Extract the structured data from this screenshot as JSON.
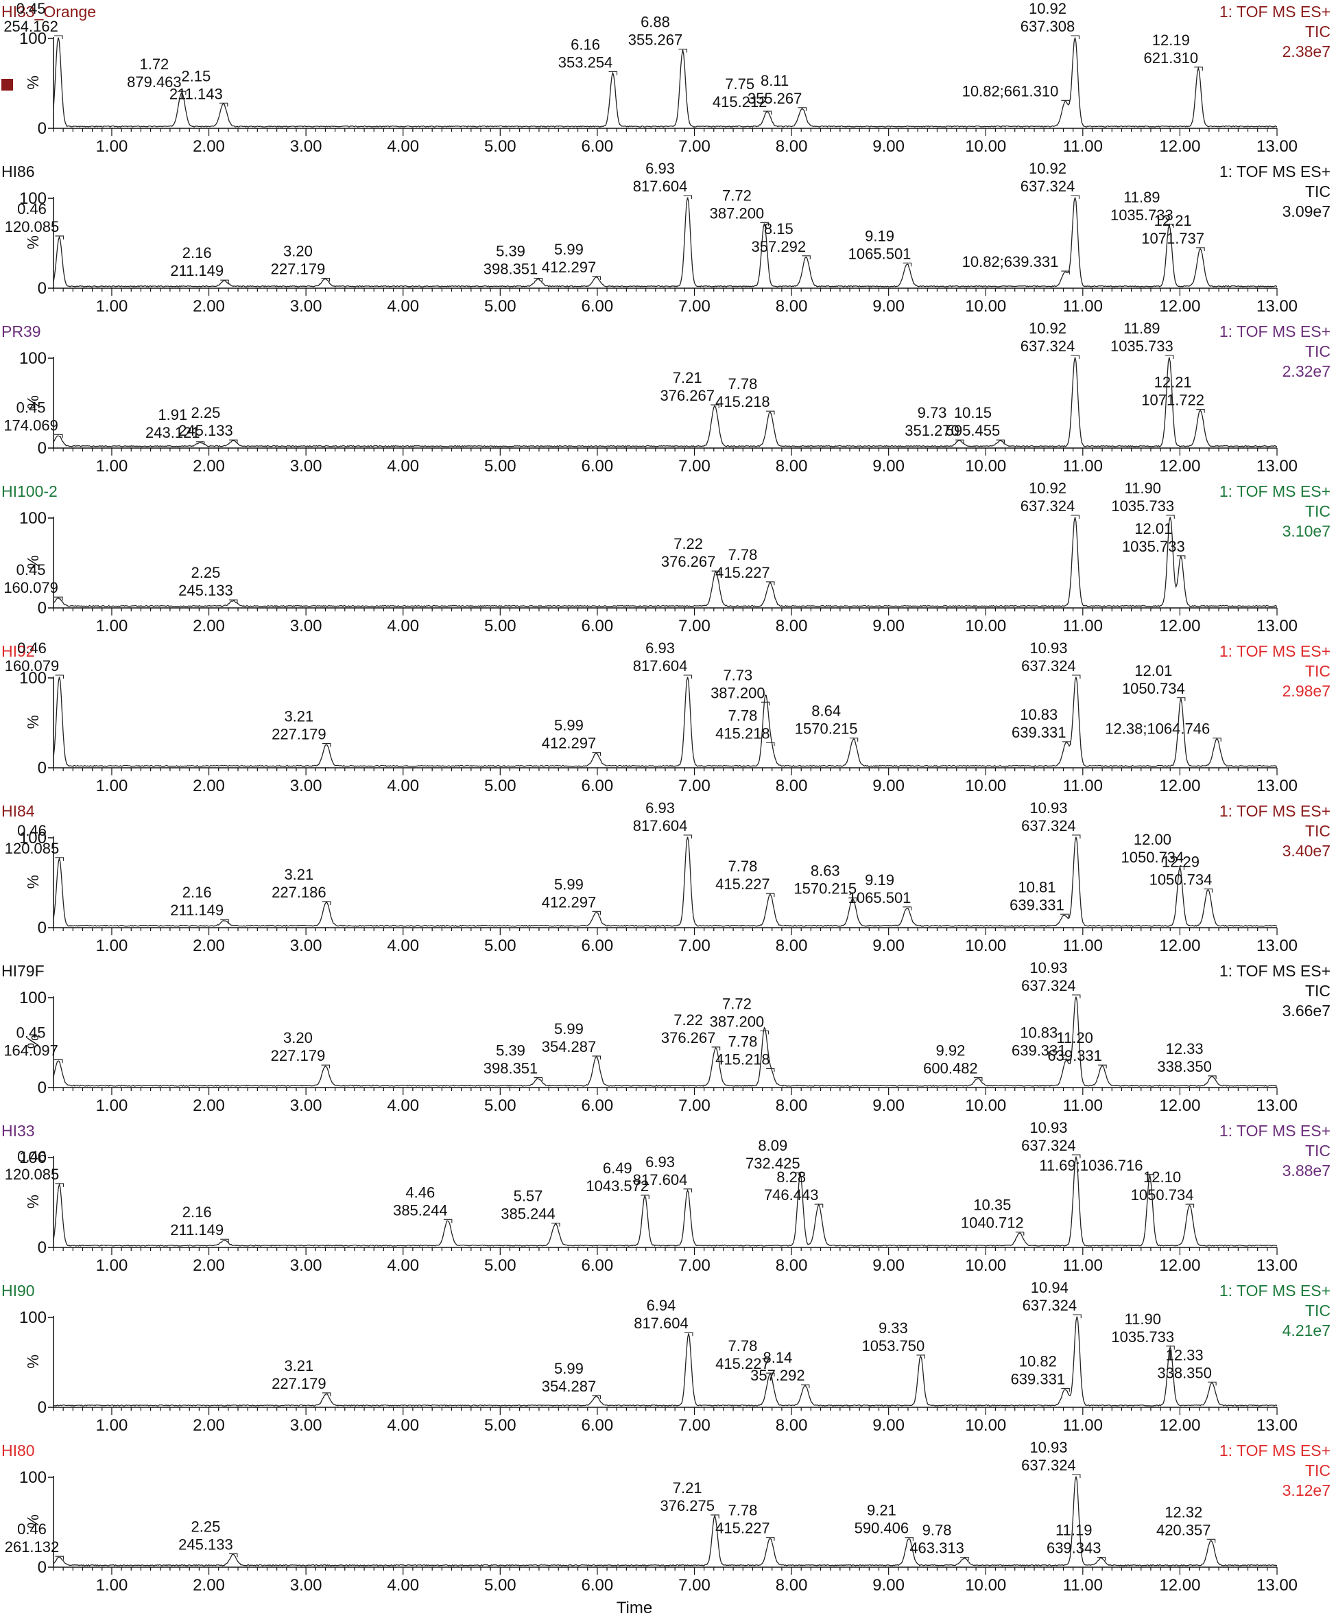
{
  "chart_data": {
    "type": "line",
    "xlabel": "Time",
    "xlim": [
      0.4,
      13.0
    ],
    "x_ticks": [
      "1.00",
      "2.00",
      "3.00",
      "4.00",
      "5.00",
      "6.00",
      "7.00",
      "8.00",
      "9.00",
      "10.00",
      "11.00",
      "12.00",
      "13.00"
    ],
    "y_axis_label": "%",
    "y_ticks": [
      "0",
      "100"
    ],
    "panels": [
      {
        "title": "HI33_Orange",
        "color": "#8b1a1a",
        "header": [
          "1: TOF MS ES+",
          "TIC",
          "2.38e7"
        ],
        "show_marker": true,
        "peaks": [
          {
            "rt": "0.45",
            "mz": "254.162",
            "x": 0.45,
            "h": 100
          },
          {
            "rt": "1.72",
            "mz": "879.463",
            "x": 1.72,
            "h": 38
          },
          {
            "rt": "2.15",
            "mz": "211.143",
            "x": 2.15,
            "h": 25
          },
          {
            "rt": "6.16",
            "mz": "353.254",
            "x": 6.16,
            "h": 60
          },
          {
            "rt": "6.88",
            "mz": "355.267",
            "x": 6.88,
            "h": 85
          },
          {
            "rt": "7.75",
            "mz": "415.212",
            "x": 7.75,
            "h": 16
          },
          {
            "rt": "8.11",
            "mz": "355.267",
            "x": 8.11,
            "h": 20
          },
          {
            "rt": "10.82;661.310",
            "mz": "",
            "x": 10.82,
            "h": 28
          },
          {
            "rt": "10.92",
            "mz": "637.308",
            "x": 10.92,
            "h": 100
          },
          {
            "rt": "12.19",
            "mz": "621.310",
            "x": 12.19,
            "h": 65
          }
        ]
      },
      {
        "title": "HI86",
        "color": "#111111",
        "header": [
          "1: TOF MS ES+",
          "TIC",
          "3.09e7"
        ],
        "show_marker": false,
        "peaks": [
          {
            "rt": "0.46",
            "mz": "120.085",
            "x": 0.46,
            "h": 55
          },
          {
            "rt": "2.16",
            "mz": "211.149",
            "x": 2.16,
            "h": 6
          },
          {
            "rt": "3.20",
            "mz": "227.179",
            "x": 3.2,
            "h": 8
          },
          {
            "rt": "5.39",
            "mz": "398.351",
            "x": 5.39,
            "h": 8
          },
          {
            "rt": "5.99",
            "mz": "412.297",
            "x": 5.99,
            "h": 10
          },
          {
            "rt": "6.93",
            "mz": "817.604",
            "x": 6.93,
            "h": 100
          },
          {
            "rt": "7.72",
            "mz": "387.200",
            "x": 7.72,
            "h": 70
          },
          {
            "rt": "8.15",
            "mz": "357.292",
            "x": 8.15,
            "h": 33
          },
          {
            "rt": "9.19",
            "mz": "1065.501",
            "x": 9.19,
            "h": 25
          },
          {
            "rt": "10.82;639.331",
            "mz": "",
            "x": 10.82,
            "h": 16
          },
          {
            "rt": "10.92",
            "mz": "637.324",
            "x": 10.92,
            "h": 100
          },
          {
            "rt": "11.89",
            "mz": "1035.733",
            "x": 11.89,
            "h": 68
          },
          {
            "rt": "12.21",
            "mz": "1071.737",
            "x": 12.21,
            "h": 42
          }
        ]
      },
      {
        "title": "PR39",
        "color": "#6b2d7a",
        "header": [
          "1: TOF MS ES+",
          "TIC",
          "2.32e7"
        ],
        "show_marker": false,
        "peaks": [
          {
            "rt": "0.45",
            "mz": "174.069",
            "x": 0.45,
            "h": 12
          },
          {
            "rt": "1.91",
            "mz": "243.121",
            "x": 1.91,
            "h": 4
          },
          {
            "rt": "2.25",
            "mz": "245.133",
            "x": 2.25,
            "h": 6
          },
          {
            "rt": "7.21",
            "mz": "376.267",
            "x": 7.21,
            "h": 45
          },
          {
            "rt": "7.78",
            "mz": "415.218",
            "x": 7.78,
            "h": 38
          },
          {
            "rt": "9.73",
            "mz": "351.270",
            "x": 9.73,
            "h": 6
          },
          {
            "rt": "10.15",
            "mz": "595.455",
            "x": 10.15,
            "h": 6
          },
          {
            "rt": "10.92",
            "mz": "637.324",
            "x": 10.92,
            "h": 100
          },
          {
            "rt": "11.89",
            "mz": "1035.733",
            "x": 11.89,
            "h": 100
          },
          {
            "rt": "12.21",
            "mz": "1071.722",
            "x": 12.21,
            "h": 40
          }
        ]
      },
      {
        "title": "HI100-2",
        "color": "#1b7a3a",
        "header": [
          "1: TOF MS ES+",
          "TIC",
          "3.10e7"
        ],
        "show_marker": false,
        "peaks": [
          {
            "rt": "0.45",
            "mz": "160.079",
            "x": 0.45,
            "h": 9
          },
          {
            "rt": "2.25",
            "mz": "245.133",
            "x": 2.25,
            "h": 6
          },
          {
            "rt": "7.22",
            "mz": "376.267",
            "x": 7.22,
            "h": 38
          },
          {
            "rt": "7.78",
            "mz": "415.227",
            "x": 7.78,
            "h": 26
          },
          {
            "rt": "10.92",
            "mz": "637.324",
            "x": 10.92,
            "h": 100
          },
          {
            "rt": "11.90",
            "mz": "1035.733",
            "x": 11.9,
            "h": 100
          },
          {
            "rt": "12.01",
            "mz": "1035.733",
            "x": 12.01,
            "h": 55
          }
        ]
      },
      {
        "title": "HI92",
        "color": "#e02a2a",
        "header": [
          "1: TOF MS ES+",
          "TIC",
          "2.98e7"
        ],
        "show_marker": false,
        "peaks": [
          {
            "rt": "0.46",
            "mz": "160.079",
            "x": 0.46,
            "h": 100
          },
          {
            "rt": "3.21",
            "mz": "227.179",
            "x": 3.21,
            "h": 24
          },
          {
            "rt": "5.99",
            "mz": "412.297",
            "x": 5.99,
            "h": 14
          },
          {
            "rt": "6.93",
            "mz": "817.604",
            "x": 6.93,
            "h": 100
          },
          {
            "rt": "7.73",
            "mz": "387.200",
            "x": 7.73,
            "h": 70
          },
          {
            "rt": "7.78",
            "mz": "415.218",
            "x": 7.78,
            "h": 25
          },
          {
            "rt": "8.64",
            "mz": "1570.215",
            "x": 8.64,
            "h": 30
          },
          {
            "rt": "10.83",
            "mz": "639.331",
            "x": 10.83,
            "h": 26
          },
          {
            "rt": "10.93",
            "mz": "637.324",
            "x": 10.93,
            "h": 100
          },
          {
            "rt": "12.01",
            "mz": "1050.734",
            "x": 12.01,
            "h": 75
          },
          {
            "rt": "12.38;1064.746",
            "mz": "",
            "x": 12.38,
            "h": 30
          }
        ]
      },
      {
        "title": "HI84",
        "color": "#8b1a1a",
        "header": [
          "1: TOF MS ES+",
          "TIC",
          "3.40e7"
        ],
        "show_marker": false,
        "peaks": [
          {
            "rt": "0.46",
            "mz": "120.085",
            "x": 0.46,
            "h": 75
          },
          {
            "rt": "2.16",
            "mz": "211.149",
            "x": 2.16,
            "h": 6
          },
          {
            "rt": "3.21",
            "mz": "227.186",
            "x": 3.21,
            "h": 26
          },
          {
            "rt": "5.99",
            "mz": "412.297",
            "x": 5.99,
            "h": 15
          },
          {
            "rt": "6.93",
            "mz": "817.604",
            "x": 6.93,
            "h": 100
          },
          {
            "rt": "7.78",
            "mz": "415.227",
            "x": 7.78,
            "h": 35
          },
          {
            "rt": "8.63",
            "mz": "1570.215",
            "x": 8.63,
            "h": 30
          },
          {
            "rt": "9.19",
            "mz": "1065.501",
            "x": 9.19,
            "h": 20
          },
          {
            "rt": "10.81",
            "mz": "639.331",
            "x": 10.81,
            "h": 12
          },
          {
            "rt": "10.93",
            "mz": "637.324",
            "x": 10.93,
            "h": 100
          },
          {
            "rt": "12.00",
            "mz": "1050.734",
            "x": 12.0,
            "h": 65
          },
          {
            "rt": "12.29",
            "mz": "1050.734",
            "x": 12.29,
            "h": 40
          }
        ]
      },
      {
        "title": "HI79F",
        "color": "#111111",
        "header": [
          "1: TOF MS ES+",
          "TIC",
          "3.66e7"
        ],
        "show_marker": false,
        "peaks": [
          {
            "rt": "0.45",
            "mz": "164.097",
            "x": 0.45,
            "h": 28
          },
          {
            "rt": "3.20",
            "mz": "227.179",
            "x": 3.2,
            "h": 22
          },
          {
            "rt": "5.39",
            "mz": "398.351",
            "x": 5.39,
            "h": 8
          },
          {
            "rt": "5.99",
            "mz": "354.287",
            "x": 5.99,
            "h": 32
          },
          {
            "rt": "7.22",
            "mz": "376.267",
            "x": 7.22,
            "h": 42
          },
          {
            "rt": "7.72",
            "mz": "387.200",
            "x": 7.72,
            "h": 60
          },
          {
            "rt": "7.78",
            "mz": "415.218",
            "x": 7.78,
            "h": 18
          },
          {
            "rt": "9.92",
            "mz": "600.482",
            "x": 9.92,
            "h": 8
          },
          {
            "rt": "10.83",
            "mz": "639.331",
            "x": 10.83,
            "h": 28
          },
          {
            "rt": "10.93",
            "mz": "637.324",
            "x": 10.93,
            "h": 100
          },
          {
            "rt": "11.20",
            "mz": "639.331",
            "x": 11.2,
            "h": 22
          },
          {
            "rt": "12.33",
            "mz": "338.350",
            "x": 12.33,
            "h": 10
          }
        ]
      },
      {
        "title": "HI33",
        "color": "#6b2d7a",
        "header": [
          "1: TOF MS ES+",
          "TIC",
          "3.88e7"
        ],
        "show_marker": false,
        "peaks": [
          {
            "rt": "0.46",
            "mz": "120.085",
            "x": 0.46,
            "h": 68
          },
          {
            "rt": "2.16",
            "mz": "211.149",
            "x": 2.16,
            "h": 6
          },
          {
            "rt": "4.46",
            "mz": "385.244",
            "x": 4.46,
            "h": 28
          },
          {
            "rt": "5.57",
            "mz": "385.244",
            "x": 5.57,
            "h": 24
          },
          {
            "rt": "6.49",
            "mz": "1043.572",
            "x": 6.49,
            "h": 55
          },
          {
            "rt": "6.93",
            "mz": "817.604",
            "x": 6.93,
            "h": 62
          },
          {
            "rt": "8.09",
            "mz": "732.425",
            "x": 8.09,
            "h": 80
          },
          {
            "rt": "8.28",
            "mz": "746.443",
            "x": 8.28,
            "h": 45
          },
          {
            "rt": "10.35",
            "mz": "1040.712",
            "x": 10.35,
            "h": 14
          },
          {
            "rt": "10.93",
            "mz": "637.324",
            "x": 10.93,
            "h": 100
          },
          {
            "rt": "11.69;1036.716",
            "mz": "",
            "x": 11.69,
            "h": 78
          },
          {
            "rt": "12.10",
            "mz": "1050.734",
            "x": 12.1,
            "h": 45
          }
        ]
      },
      {
        "title": "HI90",
        "color": "#1b7a3a",
        "header": [
          "1: TOF MS ES+",
          "TIC",
          "4.21e7"
        ],
        "show_marker": false,
        "peaks": [
          {
            "rt": "3.21",
            "mz": "227.179",
            "x": 3.21,
            "h": 13
          },
          {
            "rt": "5.99",
            "mz": "354.287",
            "x": 5.99,
            "h": 10
          },
          {
            "rt": "6.94",
            "mz": "817.604",
            "x": 6.94,
            "h": 80
          },
          {
            "rt": "7.78",
            "mz": "415.227",
            "x": 7.78,
            "h": 35
          },
          {
            "rt": "8.14",
            "mz": "357.292",
            "x": 8.14,
            "h": 22
          },
          {
            "rt": "9.33",
            "mz": "1053.750",
            "x": 9.33,
            "h": 55
          },
          {
            "rt": "10.82",
            "mz": "639.331",
            "x": 10.82,
            "h": 18
          },
          {
            "rt": "10.94",
            "mz": "637.324",
            "x": 10.94,
            "h": 100
          },
          {
            "rt": "11.90",
            "mz": "1035.733",
            "x": 11.9,
            "h": 65
          },
          {
            "rt": "12.33",
            "mz": "338.350",
            "x": 12.33,
            "h": 25
          }
        ]
      },
      {
        "title": "HI80",
        "color": "#e02a2a",
        "header": [
          "1: TOF MS ES+",
          "TIC",
          "3.12e7"
        ],
        "show_marker": false,
        "peaks": [
          {
            "rt": "0.46",
            "mz": "261.132",
            "x": 0.46,
            "h": 9
          },
          {
            "rt": "2.25",
            "mz": "245.133",
            "x": 2.25,
            "h": 12
          },
          {
            "rt": "7.21",
            "mz": "376.275",
            "x": 7.21,
            "h": 55
          },
          {
            "rt": "7.78",
            "mz": "415.227",
            "x": 7.78,
            "h": 30
          },
          {
            "rt": "9.21",
            "mz": "590.406",
            "x": 9.21,
            "h": 30
          },
          {
            "rt": "9.78",
            "mz": "463.313",
            "x": 9.78,
            "h": 8
          },
          {
            "rt": "10.93",
            "mz": "637.324",
            "x": 10.93,
            "h": 100
          },
          {
            "rt": "11.19",
            "mz": "639.343",
            "x": 11.19,
            "h": 8
          },
          {
            "rt": "12.32",
            "mz": "420.357",
            "x": 12.32,
            "h": 28
          }
        ]
      }
    ]
  }
}
